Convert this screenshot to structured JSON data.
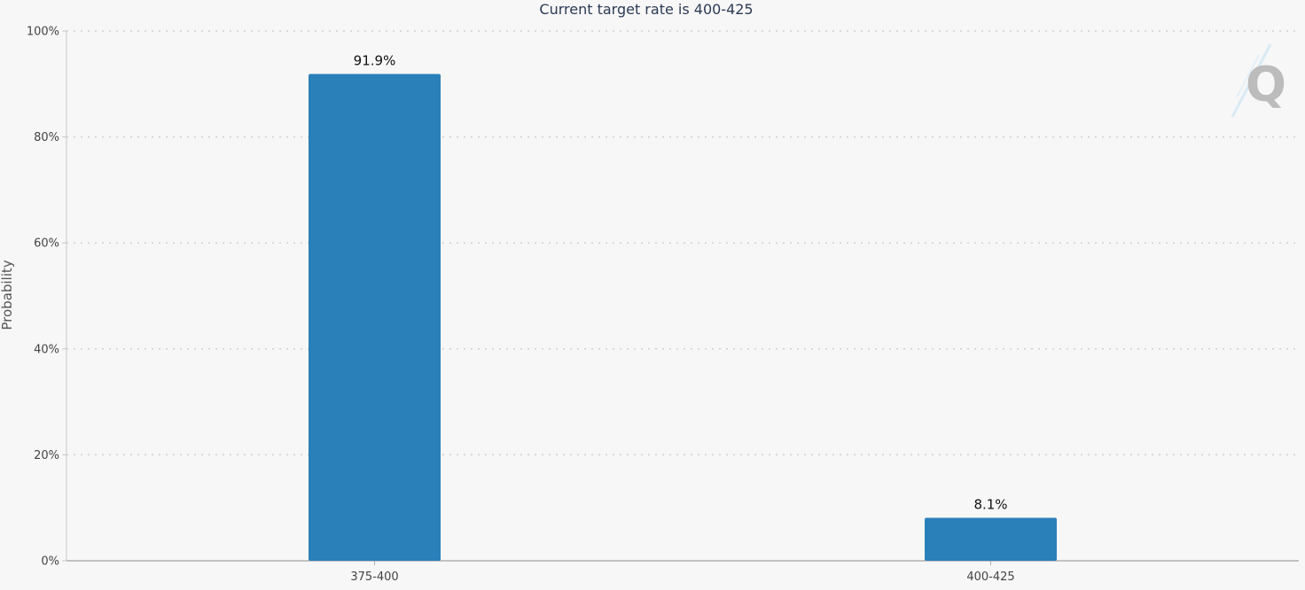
{
  "chart_data": {
    "type": "bar",
    "title": "Current target rate is 400-425",
    "xlabel": "",
    "ylabel": "Probability",
    "categories": [
      "375-400",
      "400-425"
    ],
    "series": [
      {
        "values": [
          91.9,
          8.1
        ],
        "data_labels": [
          "91.9%",
          "8.1%"
        ],
        "color": "#2a80b9"
      }
    ],
    "ylim": [
      0,
      100
    ],
    "yticks": [
      0,
      20,
      40,
      60,
      80,
      100
    ],
    "ytick_labels": [
      "0%",
      "20%",
      "40%",
      "60%",
      "80%",
      "100%"
    ],
    "grid": true,
    "grid_style": "dotted",
    "legend": "none"
  },
  "colors": {
    "background": "#f7f7f7",
    "bar": "#2a80b9",
    "grid": "#d0d0d0",
    "axis": "#b0b0b0",
    "title": "#2b3a55"
  },
  "watermark": {
    "text": "Q",
    "icon": "quikstrike-q-logo"
  }
}
